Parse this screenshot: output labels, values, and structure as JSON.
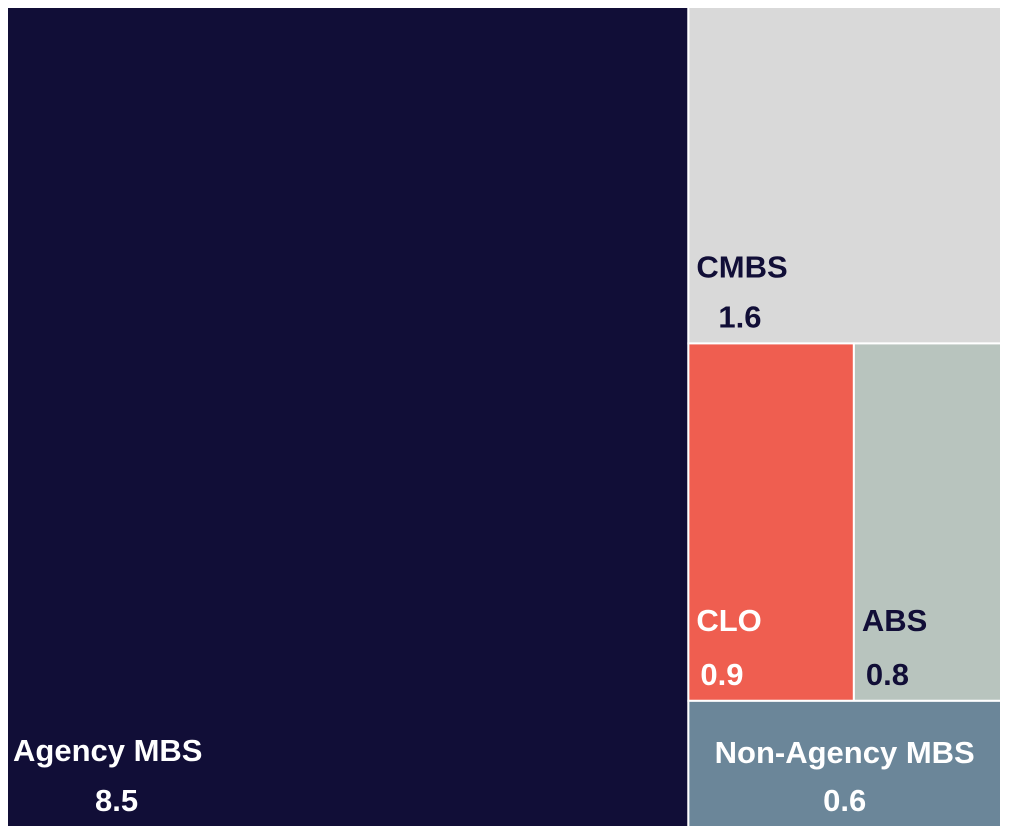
{
  "chart_data": {
    "type": "treemap",
    "items": [
      {
        "name": "Agency MBS",
        "value": 8.5,
        "color": "#110e37",
        "text_color": "#ffffff"
      },
      {
        "name": "CMBS",
        "value": 1.6,
        "color": "#d9d9d9",
        "text_color": "#110e37"
      },
      {
        "name": "CLO",
        "value": 0.9,
        "color": "#ef5e50",
        "text_color": "#ffffff"
      },
      {
        "name": "ABS",
        "value": 0.8,
        "color": "#b8c4be",
        "text_color": "#110e37"
      },
      {
        "name": "Non-Agency MBS",
        "value": 0.6,
        "color": "#6b8699",
        "text_color": "#ffffff"
      }
    ]
  }
}
